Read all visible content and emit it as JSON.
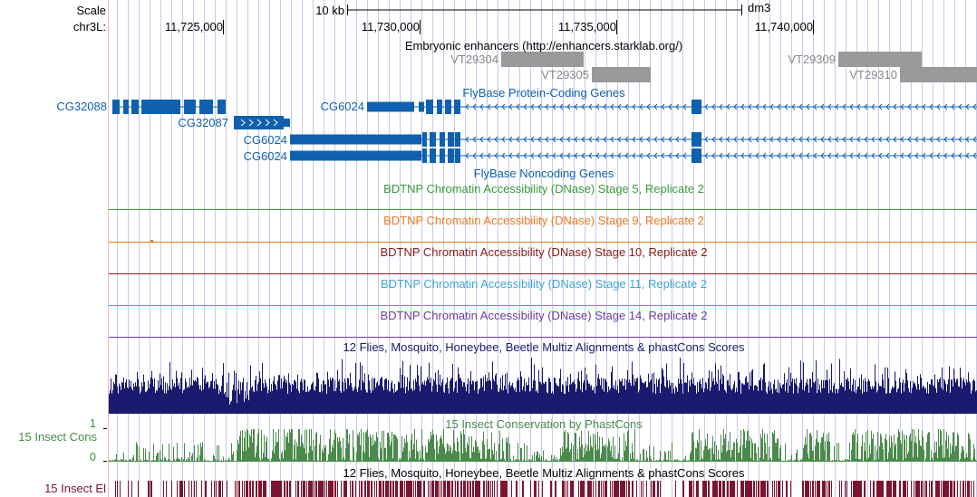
{
  "browser": {
    "scale_label": "Scale",
    "scale_bar_text": "10 kb",
    "assembly": "dm3",
    "chrom_label": "chr3L:",
    "positions": [
      "11,725,000",
      "11,730,000",
      "11,735,000",
      "11,740,000"
    ]
  },
  "colors": {
    "left_border": "#f2b8b8",
    "grid": "#c8c8ee",
    "gene": "#1060b0",
    "enhancer": "#999999",
    "enhancer_label": "#888888",
    "dnase_stage5": "#3a9a3a",
    "dnase_stage9": "#ef7a22",
    "dnase_stage10": "#8b1a1a",
    "dnase_stage11": "#3ca6d6",
    "dnase_stage14": "#6a3ca6",
    "multiz": "#1a1a6e",
    "phastcons": "#4a8a4a",
    "elements": "#7a1530"
  },
  "tracks": {
    "enhancers": {
      "title": "Embryonic enhancers (http://enhancers.starklab.org/)",
      "items": [
        "VT29304",
        "VT29305",
        "VT29309",
        "VT29310"
      ]
    },
    "flybase_coding": {
      "title": "FlyBase Protein-Coding Genes",
      "genes": [
        "CG32088",
        "CG32087",
        "CG6024",
        "CG6024",
        "CG6024"
      ]
    },
    "flybase_noncoding": {
      "title": "FlyBase Noncoding Genes"
    },
    "dnase": [
      {
        "title": "BDTNP Chromatin Accessibility (DNase) Stage 5, Replicate 2"
      },
      {
        "title": "BDTNP Chromatin Accessibility (DNase) Stage 9, Replicate 2"
      },
      {
        "title": "BDTNP Chromatin Accessibility (DNase) Stage 10, Replicate 2"
      },
      {
        "title": "BDTNP Chromatin Accessibility (DNase) Stage 11, Replicate 2"
      },
      {
        "title": "BDTNP Chromatin Accessibility (DNase) Stage 14, Replicate 2"
      }
    ],
    "multiz": {
      "title": "12 Flies, Mosquito, Honeybee, Beetle Multiz Alignments & phastCons Scores"
    },
    "phastcons": {
      "title": "15 Insect Conservation by PhastCons",
      "side_label": "15 Insect Cons",
      "axis_max": "1",
      "axis_min": "0"
    },
    "elements": {
      "title": "12 Flies, Mosquito, Honeybee, Beetle Multiz Alignments & phastCons Scores",
      "side_label": "15 Insect El"
    }
  }
}
